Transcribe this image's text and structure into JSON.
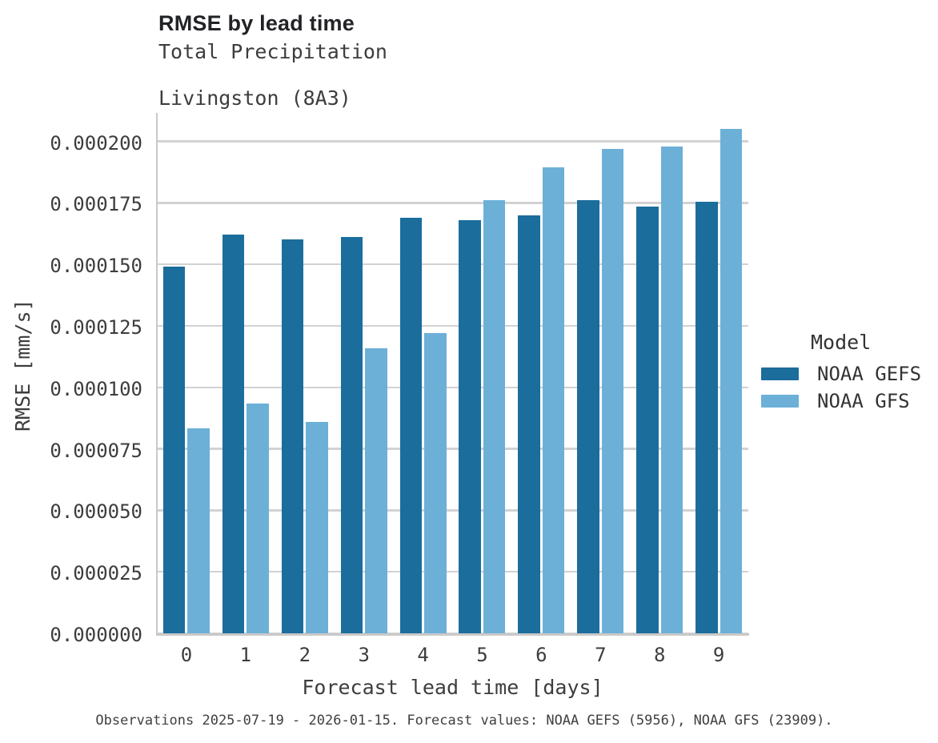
{
  "header": {
    "title": "RMSE by lead time",
    "subtitle_line1": "Total Precipitation",
    "subtitle_line2": "Livingston (8A3)"
  },
  "chart_data": {
    "type": "bar",
    "title": "RMSE by lead time",
    "subtitle": [
      "Total Precipitation",
      "Livingston (8A3)"
    ],
    "xlabel": "Forecast lead time [days]",
    "ylabel": "RMSE [mm/s]",
    "categories": [
      "0",
      "1",
      "2",
      "3",
      "4",
      "5",
      "6",
      "7",
      "8",
      "9"
    ],
    "series": [
      {
        "name": "NOAA GEFS",
        "color": "#1b6d9c",
        "values": [
          0.000149,
          0.000162,
          0.00016,
          0.000161,
          0.000169,
          0.000168,
          0.00017,
          0.000176,
          0.0001735,
          0.0001755
        ]
      },
      {
        "name": "NOAA GFS",
        "color": "#6cb0d8",
        "values": [
          8.35e-05,
          9.33e-05,
          8.58e-05,
          0.000116,
          0.0001222,
          0.000176,
          0.0001895,
          0.000197,
          0.000198,
          0.000205
        ]
      }
    ],
    "ylim": [
      0,
      0.000215
    ],
    "yticks": [
      {
        "value": 0.0,
        "label": "0.000000"
      },
      {
        "value": 2.5e-05,
        "label": "0.000025"
      },
      {
        "value": 5e-05,
        "label": "0.000050"
      },
      {
        "value": 7.5e-05,
        "label": "0.000075"
      },
      {
        "value": 0.0001,
        "label": "0.000100"
      },
      {
        "value": 0.000125,
        "label": "0.000125"
      },
      {
        "value": 0.00015,
        "label": "0.000150"
      },
      {
        "value": 0.000175,
        "label": "0.000175"
      },
      {
        "value": 0.0002,
        "label": "0.000200"
      }
    ],
    "grid": "horizontal",
    "legend_title": "Model",
    "legend_position": "right"
  },
  "colors": {
    "noaa_gefs": "#1b6d9c",
    "noaa_gfs": "#6cb0d8",
    "gridline": "#d2d2d2",
    "axis": "#c9c9c9",
    "title_text": "#222326",
    "label_text": "#3d3d3d"
  },
  "footer": {
    "caption": "Observations 2025-07-19 - 2026-01-15. Forecast values: NOAA GEFS (5956), NOAA GFS (23909)."
  }
}
